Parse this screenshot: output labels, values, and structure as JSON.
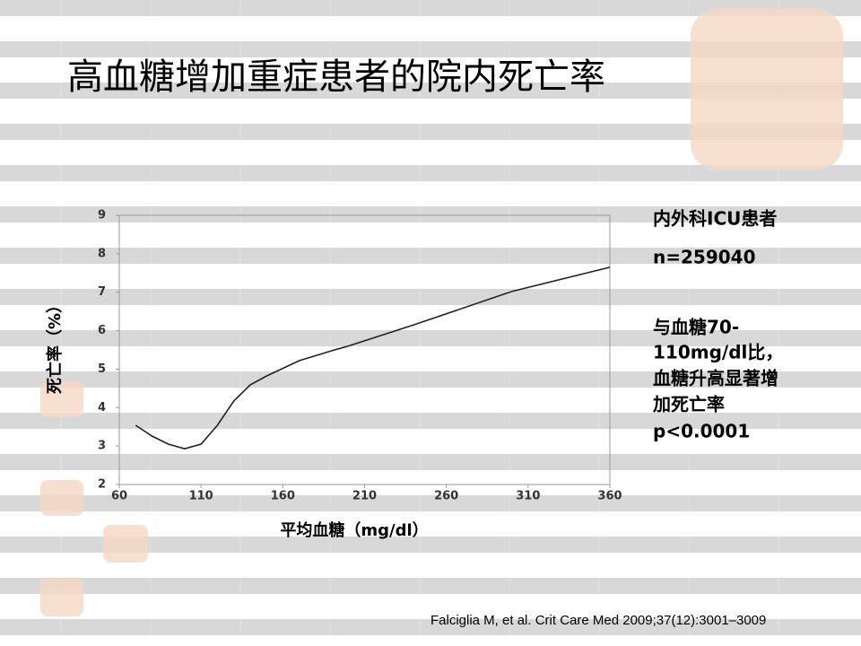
{
  "chart_data": {
    "type": "line",
    "title": "高血糖增加重症患者的院内死亡率",
    "x_label": "平均血糖（mg/dl）",
    "y_label": "死亡率（%）",
    "x": [
      70,
      80,
      90,
      100,
      110,
      120,
      130,
      140,
      150,
      170,
      190,
      200,
      240,
      300,
      360
    ],
    "series": [
      {
        "color": "#222222",
        "values": [
          3.54,
          3.26,
          3.05,
          2.93,
          3.05,
          3.54,
          4.17,
          4.59,
          4.82,
          5.22,
          5.48,
          5.6,
          6.15,
          7.02,
          7.65
        ]
      }
    ],
    "xlim": [
      60,
      360
    ],
    "xticks": [
      60,
      110,
      160,
      210,
      260,
      310,
      360
    ],
    "ylim": [
      2,
      9
    ],
    "yticks": [
      2,
      3,
      4,
      5,
      6,
      7,
      8,
      9
    ],
    "annotations": [
      "内外科ICU患者",
      "n=259040",
      "与血糖70-",
      "110mg/dl比，",
      "血糖升高显著增",
      "加死亡率",
      "p<0.0001"
    ]
  },
  "citation": "Falciglia M, et al. Crit Care Med 2009;37(12):3001–3009"
}
